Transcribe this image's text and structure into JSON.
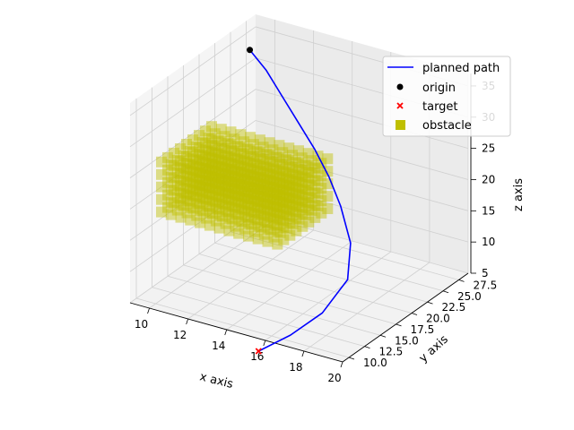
{
  "chart_data": {
    "type": "scatter3d",
    "title": "",
    "xlabel": "x axis",
    "ylabel": "y axis",
    "zlabel": "z axis",
    "xlim": [
      9,
      20
    ],
    "ylim": [
      9,
      29
    ],
    "zlim": [
      5,
      37
    ],
    "x_ticks": [
      10,
      12,
      14,
      16,
      18,
      20
    ],
    "y_ticks": [
      10.0,
      12.5,
      15.0,
      17.5,
      20.0,
      22.5,
      25.0,
      27.5
    ],
    "y_tick_labels": [
      "10.0",
      "12.5",
      "15.0",
      "17.5",
      "20.0",
      "22.5",
      "25.0",
      "27.5"
    ],
    "z_ticks": [
      5,
      10,
      15,
      20,
      25,
      30,
      35
    ],
    "grid": true,
    "legend_position": "upper right",
    "legend": [
      {
        "label": "planned path",
        "kind": "line",
        "color": "#0000ff"
      },
      {
        "label": "origin",
        "kind": "dot",
        "color": "#000000"
      },
      {
        "label": "target",
        "kind": "cross",
        "color": "#ff0000"
      },
      {
        "label": "obstacle",
        "kind": "square",
        "color": "#bfbf00"
      }
    ],
    "series": [
      {
        "name": "planned path",
        "color": "#0000ff",
        "points": [
          [
            10,
            25,
            35
          ],
          [
            11,
            24.5,
            33
          ],
          [
            12,
            24,
            30
          ],
          [
            13,
            23.5,
            27
          ],
          [
            14,
            23,
            24
          ],
          [
            15,
            22.2,
            21
          ],
          [
            16,
            21,
            18
          ],
          [
            17,
            19.5,
            14
          ],
          [
            17.5,
            17.5,
            10
          ],
          [
            17,
            15,
            6
          ],
          [
            16,
            13,
            3
          ],
          [
            15,
            11,
            1
          ]
        ]
      },
      {
        "name": "origin",
        "color": "#000000",
        "points": [
          [
            10,
            25,
            35
          ]
        ]
      },
      {
        "name": "target",
        "color": "#ff0000",
        "points": [
          [
            15,
            11,
            1
          ]
        ]
      },
      {
        "name": "obstacle",
        "color": "#bfbf00",
        "region": {
          "x": [
            9,
            15
          ],
          "y": [
            14,
            22
          ],
          "z": [
            16,
            24
          ]
        }
      }
    ]
  }
}
